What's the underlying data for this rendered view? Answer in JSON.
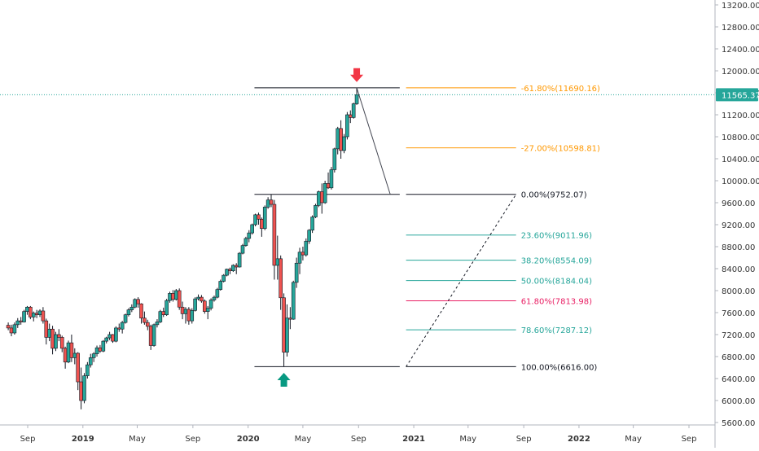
{
  "colors": {
    "up": "#26a69a",
    "down": "#ef5350",
    "grid": "#e6e6e6",
    "axis_text": "#333333",
    "level_black": "#131722",
    "level_orange": "#ff9800",
    "level_teal": "#26a69a",
    "level_pink": "#e91e63",
    "price_tag": "#26a69a",
    "arrow_down": "#f23645",
    "arrow_up": "#089981"
  },
  "chart_data": {
    "type": "candlestick",
    "y_scale": "linear",
    "ylim": [
      5500,
      13250
    ],
    "x_ticks": [
      {
        "date": "2018-09-01",
        "label": "Sep",
        "bold": false
      },
      {
        "date": "2019-01-01",
        "label": "2019",
        "bold": true
      },
      {
        "date": "2019-05-01",
        "label": "May",
        "bold": false
      },
      {
        "date": "2019-09-01",
        "label": "Sep",
        "bold": false
      },
      {
        "date": "2020-01-01",
        "label": "2020",
        "bold": true
      },
      {
        "date": "2020-05-01",
        "label": "May",
        "bold": false
      },
      {
        "date": "2020-09-01",
        "label": "Sep",
        "bold": false
      },
      {
        "date": "2021-01-01",
        "label": "2021",
        "bold": true
      },
      {
        "date": "2021-05-01",
        "label": "May",
        "bold": false
      },
      {
        "date": "2021-09-01",
        "label": "Sep",
        "bold": false
      },
      {
        "date": "2022-01-01",
        "label": "2022",
        "bold": true
      },
      {
        "date": "2022-05-01",
        "label": "May",
        "bold": false
      },
      {
        "date": "2022-09-01",
        "label": "Sep",
        "bold": false
      }
    ],
    "y_ticks": [
      {
        "value": 13200,
        "label": "13200.00"
      },
      {
        "value": 12800,
        "label": "12800.00"
      },
      {
        "value": 12400,
        "label": "12400.00"
      },
      {
        "value": 12000,
        "label": "12000.00"
      },
      {
        "value": 11600,
        "label": "11600.00"
      },
      {
        "value": 11200,
        "label": "11200.00"
      },
      {
        "value": 10800,
        "label": "10800.00"
      },
      {
        "value": 10400,
        "label": "10400.00"
      },
      {
        "value": 10000,
        "label": "10000.00"
      },
      {
        "value": 9600,
        "label": "9600.00"
      },
      {
        "value": 9200,
        "label": "9200.00"
      },
      {
        "value": 8800,
        "label": "8800.00"
      },
      {
        "value": 8400,
        "label": "8400.00"
      },
      {
        "value": 8000,
        "label": "8000.00"
      },
      {
        "value": 7600,
        "label": "7600.00"
      },
      {
        "value": 7200,
        "label": "7200.00"
      },
      {
        "value": 6800,
        "label": "6800.00"
      },
      {
        "value": 6400,
        "label": "6400.00"
      },
      {
        "value": 6000,
        "label": "6000.00"
      },
      {
        "value": 5600,
        "label": "5600.00"
      }
    ],
    "last_price": {
      "value": 11565.37,
      "label": "11565.37"
    },
    "candles": [
      {
        "date": "2018-07-20",
        "o": 7370,
        "h": 7420,
        "l": 7280,
        "c": 7320
      },
      {
        "date": "2018-07-27",
        "o": 7320,
        "h": 7380,
        "l": 7170,
        "c": 7230
      },
      {
        "date": "2018-08-03",
        "o": 7230,
        "h": 7420,
        "l": 7200,
        "c": 7380
      },
      {
        "date": "2018-08-10",
        "o": 7380,
        "h": 7500,
        "l": 7320,
        "c": 7450
      },
      {
        "date": "2018-08-17",
        "o": 7450,
        "h": 7520,
        "l": 7380,
        "c": 7430
      },
      {
        "date": "2018-08-24",
        "o": 7430,
        "h": 7650,
        "l": 7420,
        "c": 7620
      },
      {
        "date": "2018-08-31",
        "o": 7620,
        "h": 7720,
        "l": 7560,
        "c": 7700
      },
      {
        "date": "2018-09-07",
        "o": 7700,
        "h": 7720,
        "l": 7480,
        "c": 7520
      },
      {
        "date": "2018-09-14",
        "o": 7520,
        "h": 7620,
        "l": 7440,
        "c": 7590
      },
      {
        "date": "2018-09-21",
        "o": 7590,
        "h": 7650,
        "l": 7500,
        "c": 7560
      },
      {
        "date": "2018-09-28",
        "o": 7560,
        "h": 7660,
        "l": 7520,
        "c": 7630
      },
      {
        "date": "2018-10-05",
        "o": 7630,
        "h": 7700,
        "l": 7400,
        "c": 7450
      },
      {
        "date": "2018-10-12",
        "o": 7450,
        "h": 7490,
        "l": 7020,
        "c": 7150
      },
      {
        "date": "2018-10-19",
        "o": 7150,
        "h": 7400,
        "l": 7080,
        "c": 7300
      },
      {
        "date": "2018-10-26",
        "o": 7300,
        "h": 7360,
        "l": 6840,
        "c": 6950
      },
      {
        "date": "2018-11-02",
        "o": 6950,
        "h": 7250,
        "l": 6900,
        "c": 7200
      },
      {
        "date": "2018-11-09",
        "o": 7200,
        "h": 7300,
        "l": 7080,
        "c": 7150
      },
      {
        "date": "2018-11-16",
        "o": 7150,
        "h": 7180,
        "l": 6880,
        "c": 6950
      },
      {
        "date": "2018-11-23",
        "o": 6950,
        "h": 6980,
        "l": 6580,
        "c": 6700
      },
      {
        "date": "2018-11-30",
        "o": 6700,
        "h": 7090,
        "l": 6680,
        "c": 7050
      },
      {
        "date": "2018-12-07",
        "o": 7050,
        "h": 7200,
        "l": 6700,
        "c": 6780
      },
      {
        "date": "2018-12-14",
        "o": 6780,
        "h": 6950,
        "l": 6660,
        "c": 6860
      },
      {
        "date": "2018-12-21",
        "o": 6860,
        "h": 6880,
        "l": 6190,
        "c": 6340
      },
      {
        "date": "2018-12-28",
        "o": 6340,
        "h": 6600,
        "l": 5840,
        "c": 6000
      },
      {
        "date": "2019-01-04",
        "o": 6000,
        "h": 6500,
        "l": 5950,
        "c": 6450
      },
      {
        "date": "2019-01-11",
        "o": 6450,
        "h": 6700,
        "l": 6400,
        "c": 6650
      },
      {
        "date": "2019-01-18",
        "o": 6650,
        "h": 6850,
        "l": 6600,
        "c": 6780
      },
      {
        "date": "2019-01-25",
        "o": 6780,
        "h": 6880,
        "l": 6700,
        "c": 6850
      },
      {
        "date": "2019-02-01",
        "o": 6850,
        "h": 7000,
        "l": 6800,
        "c": 6960
      },
      {
        "date": "2019-02-08",
        "o": 6960,
        "h": 7010,
        "l": 6870,
        "c": 6900
      },
      {
        "date": "2019-02-15",
        "o": 6900,
        "h": 7100,
        "l": 6880,
        "c": 7080
      },
      {
        "date": "2019-02-22",
        "o": 7080,
        "h": 7160,
        "l": 7040,
        "c": 7140
      },
      {
        "date": "2019-03-01",
        "o": 7140,
        "h": 7250,
        "l": 7100,
        "c": 7200
      },
      {
        "date": "2019-03-08",
        "o": 7200,
        "h": 7210,
        "l": 7050,
        "c": 7080
      },
      {
        "date": "2019-03-15",
        "o": 7080,
        "h": 7350,
        "l": 7060,
        "c": 7320
      },
      {
        "date": "2019-03-22",
        "o": 7320,
        "h": 7400,
        "l": 7250,
        "c": 7300
      },
      {
        "date": "2019-03-29",
        "o": 7300,
        "h": 7450,
        "l": 7220,
        "c": 7420
      },
      {
        "date": "2019-04-05",
        "o": 7420,
        "h": 7580,
        "l": 7400,
        "c": 7560
      },
      {
        "date": "2019-04-12",
        "o": 7560,
        "h": 7680,
        "l": 7530,
        "c": 7650
      },
      {
        "date": "2019-04-19",
        "o": 7650,
        "h": 7750,
        "l": 7610,
        "c": 7700
      },
      {
        "date": "2019-04-26",
        "o": 7700,
        "h": 7860,
        "l": 7680,
        "c": 7840
      },
      {
        "date": "2019-05-03",
        "o": 7840,
        "h": 7880,
        "l": 7690,
        "c": 7760
      },
      {
        "date": "2019-05-10",
        "o": 7760,
        "h": 7770,
        "l": 7400,
        "c": 7500
      },
      {
        "date": "2019-05-17",
        "o": 7500,
        "h": 7620,
        "l": 7380,
        "c": 7420
      },
      {
        "date": "2019-05-24",
        "o": 7420,
        "h": 7470,
        "l": 7280,
        "c": 7350
      },
      {
        "date": "2019-05-31",
        "o": 7350,
        "h": 7380,
        "l": 6920,
        "c": 7000
      },
      {
        "date": "2019-06-07",
        "o": 7000,
        "h": 7400,
        "l": 6980,
        "c": 7380
      },
      {
        "date": "2019-06-14",
        "o": 7380,
        "h": 7480,
        "l": 7330,
        "c": 7430
      },
      {
        "date": "2019-06-21",
        "o": 7430,
        "h": 7650,
        "l": 7410,
        "c": 7620
      },
      {
        "date": "2019-06-28",
        "o": 7620,
        "h": 7690,
        "l": 7520,
        "c": 7560
      },
      {
        "date": "2019-07-05",
        "o": 7560,
        "h": 7850,
        "l": 7540,
        "c": 7820
      },
      {
        "date": "2019-07-12",
        "o": 7820,
        "h": 7980,
        "l": 7780,
        "c": 7950
      },
      {
        "date": "2019-07-19",
        "o": 7950,
        "h": 8010,
        "l": 7800,
        "c": 7840
      },
      {
        "date": "2019-07-26",
        "o": 7840,
        "h": 8030,
        "l": 7820,
        "c": 8000
      },
      {
        "date": "2019-08-02",
        "o": 8000,
        "h": 8040,
        "l": 7650,
        "c": 7700
      },
      {
        "date": "2019-08-09",
        "o": 7700,
        "h": 7800,
        "l": 7480,
        "c": 7580
      },
      {
        "date": "2019-08-16",
        "o": 7580,
        "h": 7700,
        "l": 7400,
        "c": 7660
      },
      {
        "date": "2019-08-23",
        "o": 7660,
        "h": 7700,
        "l": 7380,
        "c": 7450
      },
      {
        "date": "2019-08-30",
        "o": 7450,
        "h": 7680,
        "l": 7400,
        "c": 7640
      },
      {
        "date": "2019-09-06",
        "o": 7640,
        "h": 7880,
        "l": 7620,
        "c": 7850
      },
      {
        "date": "2019-09-13",
        "o": 7850,
        "h": 7930,
        "l": 7820,
        "c": 7880
      },
      {
        "date": "2019-09-20",
        "o": 7880,
        "h": 7920,
        "l": 7780,
        "c": 7810
      },
      {
        "date": "2019-09-27",
        "o": 7810,
        "h": 7840,
        "l": 7580,
        "c": 7620
      },
      {
        "date": "2019-10-04",
        "o": 7620,
        "h": 7720,
        "l": 7480,
        "c": 7680
      },
      {
        "date": "2019-10-11",
        "o": 7680,
        "h": 7860,
        "l": 7640,
        "c": 7830
      },
      {
        "date": "2019-10-18",
        "o": 7830,
        "h": 7910,
        "l": 7800,
        "c": 7880
      },
      {
        "date": "2019-10-25",
        "o": 7880,
        "h": 8050,
        "l": 7860,
        "c": 8020
      },
      {
        "date": "2019-11-01",
        "o": 8020,
        "h": 8200,
        "l": 8000,
        "c": 8170
      },
      {
        "date": "2019-11-08",
        "o": 8170,
        "h": 8300,
        "l": 8150,
        "c": 8280
      },
      {
        "date": "2019-11-15",
        "o": 8280,
        "h": 8400,
        "l": 8260,
        "c": 8390
      },
      {
        "date": "2019-11-22",
        "o": 8390,
        "h": 8420,
        "l": 8300,
        "c": 8360
      },
      {
        "date": "2019-11-29",
        "o": 8360,
        "h": 8480,
        "l": 8340,
        "c": 8460
      },
      {
        "date": "2019-12-06",
        "o": 8460,
        "h": 8500,
        "l": 8300,
        "c": 8430
      },
      {
        "date": "2019-12-13",
        "o": 8430,
        "h": 8700,
        "l": 8420,
        "c": 8680
      },
      {
        "date": "2019-12-20",
        "o": 8680,
        "h": 8850,
        "l": 8660,
        "c": 8820
      },
      {
        "date": "2019-12-27",
        "o": 8820,
        "h": 8980,
        "l": 8800,
        "c": 8950
      },
      {
        "date": "2020-01-03",
        "o": 8950,
        "h": 9100,
        "l": 8880,
        "c": 9050
      },
      {
        "date": "2020-01-10",
        "o": 9050,
        "h": 9220,
        "l": 9020,
        "c": 9200
      },
      {
        "date": "2020-01-17",
        "o": 9200,
        "h": 9400,
        "l": 9170,
        "c": 9380
      },
      {
        "date": "2020-01-24",
        "o": 9380,
        "h": 9420,
        "l": 9200,
        "c": 9300
      },
      {
        "date": "2020-01-31",
        "o": 9300,
        "h": 9330,
        "l": 8980,
        "c": 9130
      },
      {
        "date": "2020-02-07",
        "o": 9130,
        "h": 9550,
        "l": 9100,
        "c": 9520
      },
      {
        "date": "2020-02-14",
        "o": 9520,
        "h": 9700,
        "l": 9490,
        "c": 9650
      },
      {
        "date": "2020-02-21",
        "o": 9650,
        "h": 9752,
        "l": 9520,
        "c": 9570
      },
      {
        "date": "2020-02-28",
        "o": 9570,
        "h": 9650,
        "l": 8200,
        "c": 8460
      },
      {
        "date": "2020-03-06",
        "o": 8460,
        "h": 9000,
        "l": 8200,
        "c": 8580
      },
      {
        "date": "2020-03-13",
        "o": 8580,
        "h": 8640,
        "l": 7650,
        "c": 7870
      },
      {
        "date": "2020-03-20",
        "o": 7870,
        "h": 7950,
        "l": 6616,
        "c": 6880
      },
      {
        "date": "2020-03-27",
        "o": 6880,
        "h": 7750,
        "l": 6800,
        "c": 7500
      },
      {
        "date": "2020-04-03",
        "o": 7500,
        "h": 7700,
        "l": 7300,
        "c": 7480
      },
      {
        "date": "2020-04-10",
        "o": 7480,
        "h": 8180,
        "l": 7470,
        "c": 8150
      },
      {
        "date": "2020-04-17",
        "o": 8150,
        "h": 8600,
        "l": 8050,
        "c": 8500
      },
      {
        "date": "2020-04-24",
        "o": 8500,
        "h": 8780,
        "l": 8300,
        "c": 8700
      },
      {
        "date": "2020-05-01",
        "o": 8700,
        "h": 8800,
        "l": 8550,
        "c": 8650
      },
      {
        "date": "2020-05-08",
        "o": 8650,
        "h": 8950,
        "l": 8620,
        "c": 8900
      },
      {
        "date": "2020-05-15",
        "o": 8900,
        "h": 9120,
        "l": 8850,
        "c": 9100
      },
      {
        "date": "2020-05-22",
        "o": 9100,
        "h": 9370,
        "l": 9050,
        "c": 9340
      },
      {
        "date": "2020-05-29",
        "o": 9340,
        "h": 9580,
        "l": 9320,
        "c": 9550
      },
      {
        "date": "2020-06-05",
        "o": 9550,
        "h": 9820,
        "l": 9520,
        "c": 9800
      },
      {
        "date": "2020-06-12",
        "o": 9800,
        "h": 9950,
        "l": 9400,
        "c": 9600
      },
      {
        "date": "2020-06-19",
        "o": 9600,
        "h": 10000,
        "l": 9580,
        "c": 9950
      },
      {
        "date": "2020-06-26",
        "o": 9950,
        "h": 10150,
        "l": 9850,
        "c": 9870
      },
      {
        "date": "2020-07-03",
        "o": 9870,
        "h": 10250,
        "l": 9840,
        "c": 10200
      },
      {
        "date": "2020-07-10",
        "o": 10200,
        "h": 10600,
        "l": 10150,
        "c": 10580
      },
      {
        "date": "2020-07-17",
        "o": 10580,
        "h": 10980,
        "l": 10480,
        "c": 10950
      },
      {
        "date": "2020-07-24",
        "o": 10950,
        "h": 11100,
        "l": 10400,
        "c": 10550
      },
      {
        "date": "2020-07-31",
        "o": 10550,
        "h": 10850,
        "l": 10500,
        "c": 10800
      },
      {
        "date": "2020-08-07",
        "o": 10800,
        "h": 11250,
        "l": 10750,
        "c": 11200
      },
      {
        "date": "2020-08-14",
        "o": 11200,
        "h": 11280,
        "l": 11050,
        "c": 11150
      },
      {
        "date": "2020-08-21",
        "o": 11150,
        "h": 11420,
        "l": 11130,
        "c": 11400
      },
      {
        "date": "2020-08-28",
        "o": 11400,
        "h": 11690,
        "l": 11380,
        "c": 11565
      }
    ],
    "fib_levels": [
      {
        "label": "-61.80%(11690.16)",
        "value": 11690.16,
        "style": "orange"
      },
      {
        "label": "-27.00%(10598.81)",
        "value": 10598.81,
        "style": "orange"
      },
      {
        "label": "0.00%(9752.07)",
        "value": 9752.07,
        "style": "black"
      },
      {
        "label": "23.60%(9011.96)",
        "value": 9011.96,
        "style": "teal"
      },
      {
        "label": "38.20%(8554.09)",
        "value": 8554.09,
        "style": "teal"
      },
      {
        "label": "50.00%(8184.04)",
        "value": 8184.04,
        "style": "teal"
      },
      {
        "label": "61.80%(7813.98)",
        "value": 7813.98,
        "style": "pink"
      },
      {
        "label": "78.60%(7287.12)",
        "value": 7287.12,
        "style": "teal"
      },
      {
        "label": "100.00%(6616.00)",
        "value": 6616.0,
        "style": "black"
      }
    ],
    "fib_range": {
      "from_date": "2020-12-15",
      "to_date": "2021-08-15",
      "from_value": 6616.0,
      "to_value": 9752.07
    },
    "horizontal_rays": [
      {
        "value": 11690.16,
        "from_date": "2020-01-15",
        "to_date": "2020-12-01"
      },
      {
        "value": 9752.07,
        "from_date": "2020-01-15",
        "to_date": "2020-12-01"
      },
      {
        "value": 6616.0,
        "from_date": "2020-01-15",
        "to_date": "2020-12-01"
      }
    ],
    "projection_line": {
      "from_date": "2020-08-28",
      "from_value": 11690.16,
      "to_date": "2020-11-10",
      "to_value": 9752.07
    },
    "annotations": [
      {
        "type": "arrow-down",
        "date": "2020-08-28",
        "value": 11900
      },
      {
        "type": "arrow-up",
        "date": "2020-03-20",
        "value": 6400
      }
    ]
  }
}
